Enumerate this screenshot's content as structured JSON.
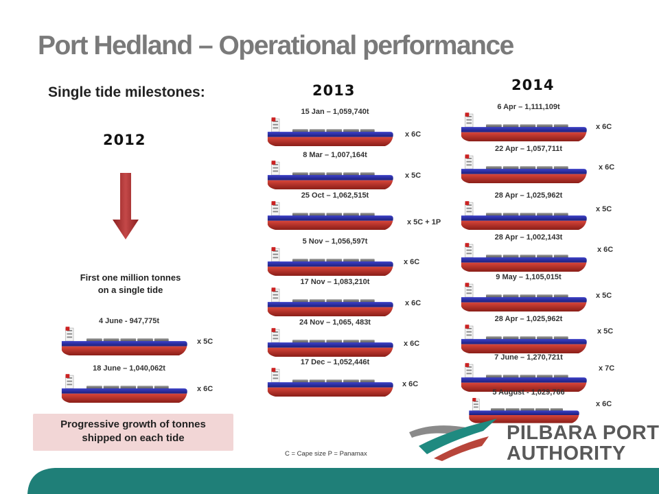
{
  "slide": {
    "title": "Port Hedland – Operational performance",
    "subtitle": "Single tide milestones",
    "subtitle_colon": ":",
    "colors": {
      "accent_teal": "#1f8a80",
      "arrow_red": "#b03a3a",
      "ship_blue": "#2b2fa0",
      "ship_red": "#c0342c",
      "callout_bg": "#f2d6d6"
    }
  },
  "years": {
    "y2012": "2012",
    "y2013": "2013",
    "y2014": "2014"
  },
  "col2012": {
    "milestone_text_line1": "First one million tonnes",
    "milestone_text_line2": "on a single tide",
    "ships": [
      {
        "label": "4 June - 947,775t",
        "count": "x 5C"
      },
      {
        "label": "18 June – 1,040,062t",
        "count": "x 6C"
      }
    ],
    "callout_line1": "Progressive growth of tonnes",
    "callout_line2": "shipped on each tide"
  },
  "col2013": {
    "ships": [
      {
        "label": "15 Jan – 1,059,740t",
        "count": "x 6C"
      },
      {
        "label": "8 Mar – 1,007,164t",
        "count": "x 5C"
      },
      {
        "label": "25 Oct – 1,062,515t",
        "count": "x 5C + 1P"
      },
      {
        "label": "5 Nov – 1,056,597t",
        "count": "x 6C"
      },
      {
        "label": "17 Nov – 1,083,210t",
        "count": "x 6C"
      },
      {
        "label": "24 Nov – 1,065, 483t",
        "count": "x 6C"
      },
      {
        "label": "17 Dec – 1,052,446t",
        "count": "x 6C"
      }
    ]
  },
  "col2014": {
    "ships": [
      {
        "label": "6 Apr – 1,111,109t",
        "count": "x 6C"
      },
      {
        "label": "22 Apr – 1,057,711t",
        "count": "x 6C"
      },
      {
        "label": "28 Apr – 1,025,962t",
        "count": "x 5C"
      },
      {
        "label": "28 Apr – 1,002,143t",
        "count": "x 6C"
      },
      {
        "label": "9 May – 1,105,015t",
        "count": "x 5C"
      },
      {
        "label": "28 Apr – 1,025,962t",
        "count": "x 5C"
      },
      {
        "label": "7 June – 1,270,721t",
        "count": "x 7C"
      },
      {
        "label": "5 August - 1,029,766",
        "count": "x 6C"
      }
    ]
  },
  "legend": "C = Cape size   P = Panamax",
  "brand": {
    "line1": "PILBARA PORTS",
    "line2": "AUTHORITY",
    "logo_icon": "pilbara-ports-logo"
  }
}
